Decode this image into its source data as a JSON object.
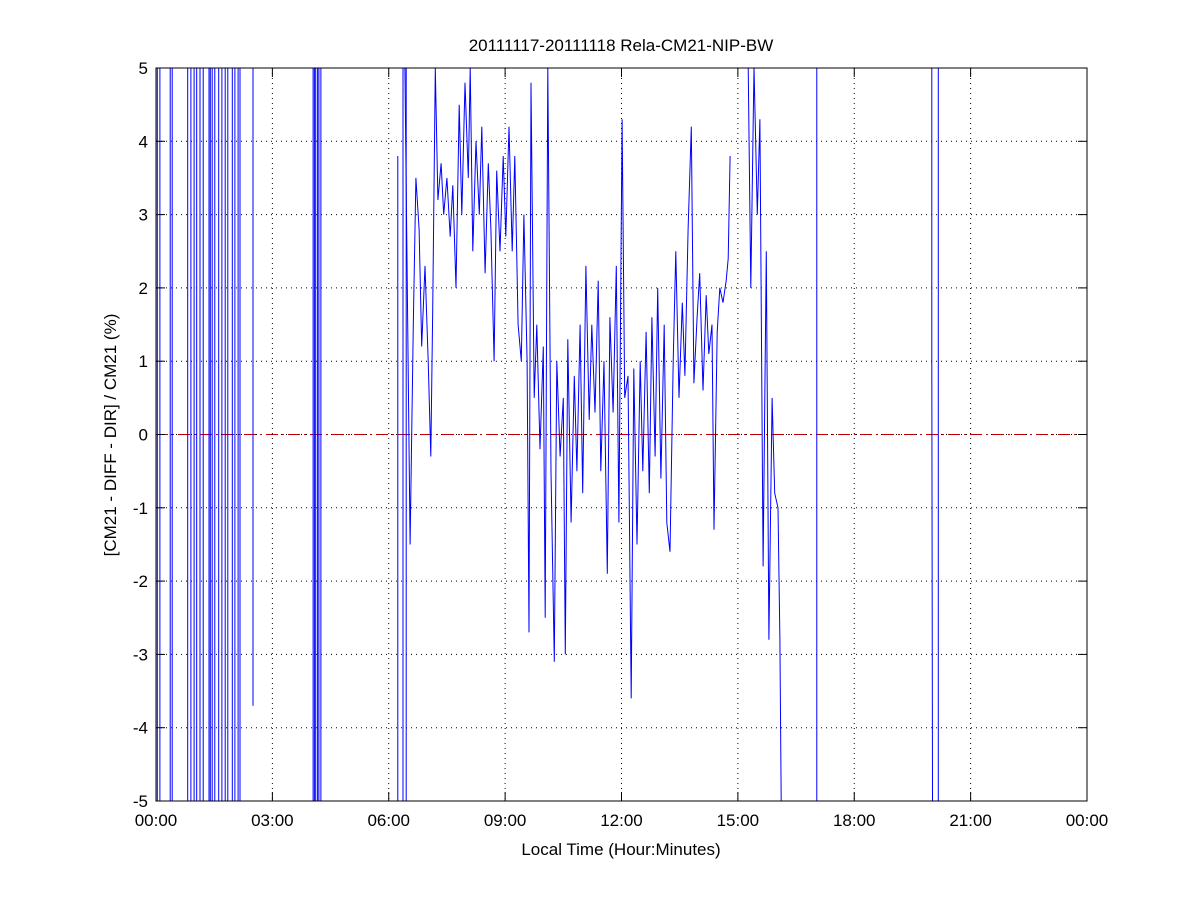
{
  "chart_data": {
    "type": "line",
    "title": "20111117-20111118 Rela-CM21-NIP-BW",
    "xlabel": "Local Time (Hour:Minutes)",
    "ylabel": "[CM21 - DIFF - DIR] / CM21 (%)",
    "xlim": [
      "00:00",
      "24:00"
    ],
    "ylim": [
      -5,
      5
    ],
    "xticks": [
      "00:00",
      "03:00",
      "06:00",
      "09:00",
      "12:00",
      "15:00",
      "18:00",
      "21:00",
      "00:00"
    ],
    "yticks": [
      "5",
      "4",
      "3",
      "2",
      "1",
      "0",
      "-1",
      "-2",
      "-3",
      "-4",
      "-5"
    ],
    "grid": true,
    "reference_line": {
      "y": 0,
      "color": "#c00000",
      "style": "dash-dot"
    },
    "series_color": "#0000ff",
    "series": [
      {
        "points": [
          [
            "00:02",
            10
          ],
          [
            "00:02",
            -10
          ],
          null,
          [
            "00:06",
            10
          ],
          [
            "00:06",
            -10
          ],
          null,
          [
            "00:22",
            10
          ],
          [
            "00:22",
            -10
          ],
          null,
          [
            "00:25",
            10
          ],
          [
            "00:25",
            -10
          ],
          null,
          [
            "00:49",
            10
          ],
          [
            "00:49",
            -10
          ],
          null,
          [
            "00:54",
            10
          ],
          [
            "00:54",
            -10
          ],
          null,
          [
            "00:59",
            10
          ],
          [
            "00:59",
            -10
          ],
          null,
          [
            "01:03",
            10
          ],
          [
            "01:03",
            -10
          ],
          null,
          [
            "01:08",
            10
          ],
          [
            "01:08",
            -10
          ],
          null,
          [
            "01:13",
            10
          ],
          [
            "01:13",
            -10
          ],
          null,
          [
            "01:22",
            10
          ],
          [
            "01:22",
            -10
          ],
          null,
          [
            "01:24",
            10
          ],
          [
            "01:24",
            -10
          ],
          null,
          [
            "01:27",
            10
          ],
          [
            "01:27",
            -10
          ],
          null,
          [
            "01:31",
            10
          ],
          [
            "01:31",
            -10
          ],
          null,
          [
            "01:37",
            10
          ],
          [
            "01:37",
            -10
          ],
          null,
          [
            "01:42",
            10
          ],
          [
            "01:42",
            -10
          ],
          null,
          [
            "01:47",
            10
          ],
          [
            "01:47",
            -10
          ],
          null,
          [
            "01:51",
            10
          ],
          [
            "01:51",
            -10
          ],
          null,
          [
            "01:58",
            10
          ],
          [
            "01:58",
            -10
          ],
          null,
          [
            "02:02",
            10
          ],
          [
            "02:02",
            -10
          ],
          null,
          [
            "02:07",
            10
          ],
          [
            "02:07",
            -10
          ],
          null,
          [
            "02:10",
            10
          ],
          [
            "02:10",
            -10
          ],
          null,
          [
            "02:30",
            10
          ],
          [
            "02:30",
            -3.7
          ],
          null,
          [
            "04:03",
            10
          ],
          [
            "04:03",
            -10
          ],
          null,
          [
            "04:05",
            10
          ],
          [
            "04:05",
            -10
          ],
          null,
          [
            "04:07",
            10
          ],
          [
            "04:07",
            -10
          ],
          null,
          [
            "04:10",
            10
          ],
          [
            "04:10",
            -10
          ],
          null,
          [
            "04:12",
            10
          ],
          [
            "04:12",
            -10
          ],
          null,
          [
            "04:15",
            10
          ],
          [
            "04:15",
            -10
          ],
          null,
          [
            "06:14",
            3.8
          ],
          [
            "06:14",
            -10
          ],
          null,
          [
            "06:22",
            10
          ],
          [
            "06:22",
            -10
          ],
          null,
          [
            "06:27",
            10
          ],
          [
            "06:27",
            -10
          ],
          null,
          [
            "06:25",
            10
          ],
          [
            "06:33",
            -1.5
          ],
          [
            "06:38",
            1.5
          ],
          [
            "06:42",
            3.5
          ],
          [
            "06:47",
            2.8
          ],
          [
            "06:51",
            1.2
          ],
          [
            "06:56",
            2.3
          ],
          [
            "07:01",
            1.0
          ],
          [
            "07:05",
            -0.3
          ],
          [
            "07:08",
            1.7
          ],
          [
            "07:12",
            5.0
          ],
          [
            "07:16",
            3.2
          ],
          [
            "07:21",
            3.7
          ],
          [
            "07:25",
            3.0
          ],
          [
            "07:30",
            3.5
          ],
          [
            "07:35",
            2.7
          ],
          [
            "07:39",
            3.4
          ],
          [
            "07:44",
            2.0
          ],
          [
            "07:49",
            4.5
          ],
          [
            "07:53",
            3.0
          ],
          [
            "07:58",
            4.8
          ],
          [
            "08:03",
            3.5
          ],
          [
            "08:06",
            10
          ],
          [
            "08:10",
            2.5
          ],
          [
            "08:15",
            4.0
          ],
          [
            "08:20",
            3.0
          ],
          [
            "08:24",
            4.2
          ],
          [
            "08:29",
            2.2
          ],
          [
            "08:34",
            3.7
          ],
          [
            "08:38",
            2.8
          ],
          [
            "08:43",
            1.0
          ],
          [
            "08:47",
            3.6
          ],
          [
            "08:52",
            2.5
          ],
          [
            "08:57",
            3.8
          ],
          [
            "09:01",
            2.7
          ],
          [
            "09:06",
            4.2
          ],
          [
            "09:11",
            2.5
          ],
          [
            "09:15",
            3.8
          ],
          [
            "09:20",
            1.5
          ],
          [
            "09:25",
            1.0
          ],
          [
            "09:29",
            3.0
          ],
          [
            "09:34",
            1.0
          ],
          [
            "09:37",
            -2.7
          ],
          [
            "09:40",
            4.8
          ],
          [
            "09:45",
            0.5
          ],
          [
            "09:49",
            1.5
          ],
          [
            "09:54",
            -0.2
          ],
          [
            "09:59",
            1.2
          ],
          [
            "10:02",
            -2.5
          ],
          [
            "10:06",
            10
          ],
          [
            "10:11",
            -0.5
          ],
          [
            "10:16",
            -3.1
          ],
          [
            "10:20",
            1.0
          ],
          [
            "10:25",
            -0.3
          ],
          [
            "10:30",
            0.5
          ],
          [
            "10:33",
            -3.0
          ],
          [
            "10:37",
            1.3
          ],
          [
            "10:42",
            -1.2
          ],
          [
            "10:47",
            0.8
          ],
          [
            "10:51",
            -0.5
          ],
          [
            "10:56",
            1.5
          ],
          [
            "11:00",
            -0.8
          ],
          [
            "11:05",
            2.3
          ],
          [
            "11:10",
            0.2
          ],
          [
            "11:14",
            1.5
          ],
          [
            "11:19",
            0.3
          ],
          [
            "11:24",
            2.1
          ],
          [
            "11:28",
            -0.5
          ],
          [
            "11:33",
            1.0
          ],
          [
            "11:38",
            -1.9
          ],
          [
            "11:42",
            1.6
          ],
          [
            "11:47",
            0.3
          ],
          [
            "11:52",
            2.3
          ],
          [
            "11:56",
            -1.2
          ],
          [
            "12:01",
            4.3
          ],
          [
            "12:05",
            0.5
          ],
          [
            "12:10",
            0.8
          ],
          [
            "12:15",
            -3.6
          ],
          [
            "12:19",
            0.9
          ],
          [
            "12:24",
            -1.5
          ],
          [
            "12:29",
            1.0
          ],
          [
            "12:33",
            -0.5
          ],
          [
            "12:38",
            1.4
          ],
          [
            "12:43",
            -0.8
          ],
          [
            "12:47",
            1.6
          ],
          [
            "12:52",
            -0.3
          ],
          [
            "12:56",
            2.0
          ],
          [
            "13:01",
            -0.6
          ],
          [
            "13:06",
            1.5
          ],
          [
            "13:10",
            -1.2
          ],
          [
            "13:15",
            -1.6
          ],
          [
            "13:20",
            1.0
          ],
          [
            "13:24",
            2.5
          ],
          [
            "13:29",
            0.5
          ],
          [
            "13:34",
            1.8
          ],
          [
            "13:38",
            0.8
          ],
          [
            "13:43",
            2.8
          ],
          [
            "13:48",
            4.2
          ],
          [
            "13:52",
            0.7
          ],
          [
            "13:57",
            1.6
          ],
          [
            "14:01",
            2.2
          ],
          [
            "14:06",
            0.6
          ],
          [
            "14:11",
            1.9
          ],
          [
            "14:15",
            1.1
          ],
          [
            "14:20",
            1.5
          ],
          [
            "14:23",
            -1.3
          ],
          [
            "14:28",
            1.4
          ],
          [
            "14:32",
            2.0
          ],
          [
            "14:37",
            1.8
          ],
          [
            "14:42",
            2.1
          ],
          [
            "14:45",
            2.4
          ],
          [
            "14:48",
            3.8
          ],
          null,
          [
            "15:16",
            10
          ],
          [
            "15:20",
            2.0
          ],
          [
            "15:25",
            10
          ],
          [
            "15:30",
            3.0
          ],
          [
            "15:34",
            4.3
          ],
          [
            "15:39",
            -1.8
          ],
          [
            "15:44",
            2.5
          ],
          [
            "15:48",
            -2.8
          ],
          [
            "15:53",
            0.5
          ],
          [
            "15:57",
            -0.8
          ],
          [
            "16:02",
            -1.0
          ],
          [
            "16:05",
            -2.8
          ],
          [
            "16:07",
            -10
          ],
          null,
          [
            "17:02",
            -10
          ],
          [
            "17:02",
            10
          ],
          null,
          [
            "20:00",
            10
          ],
          [
            "20:00",
            1.0
          ],
          [
            "20:01",
            -10
          ],
          null,
          [
            "20:10",
            10
          ],
          [
            "20:10",
            -10
          ]
        ]
      }
    ]
  }
}
